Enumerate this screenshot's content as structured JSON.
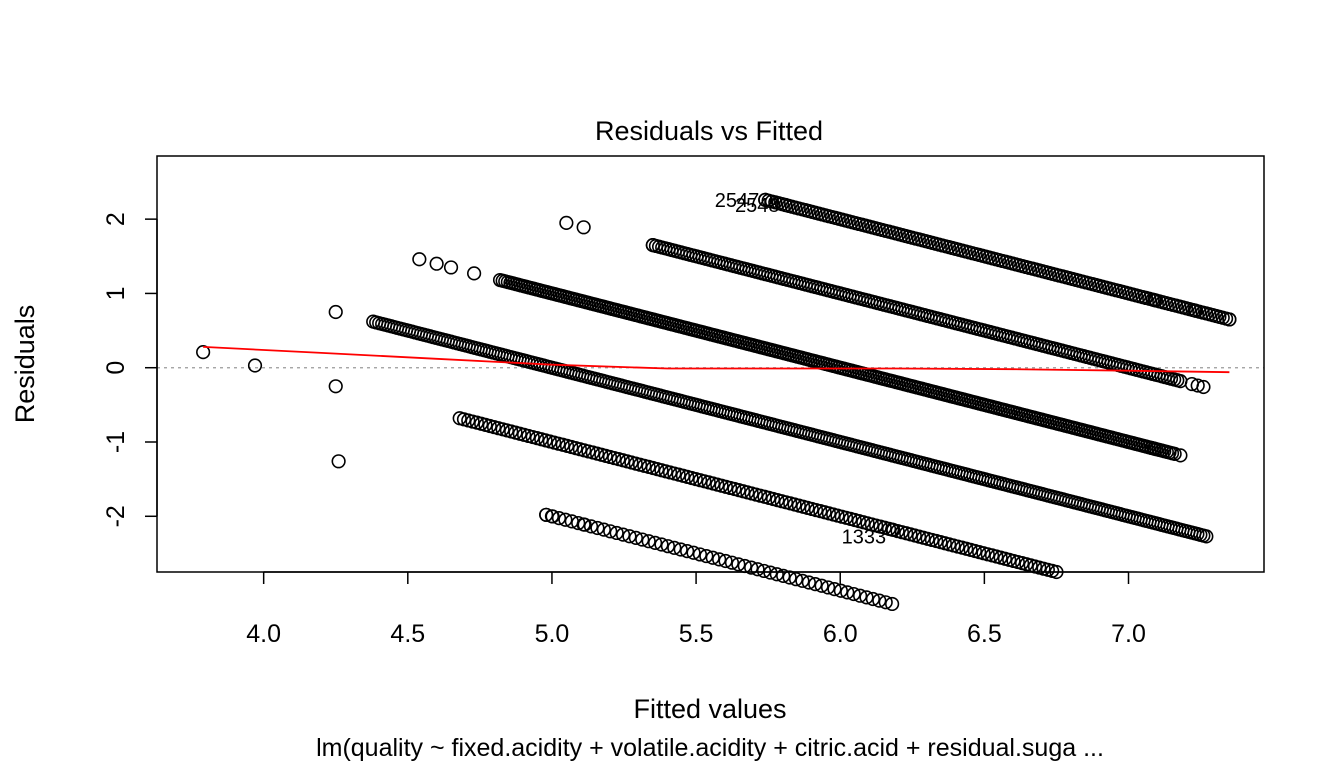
{
  "chart_data": {
    "type": "scatter",
    "title": "Residuals vs Fitted",
    "xlabel": "Fitted values",
    "ylabel": "Residuals",
    "subtitle": "lm(quality ~ fixed.acidity + volatile.acidity + citric.acid + residual.suga ...",
    "xlim": [
      3.63,
      7.47
    ],
    "ylim": [
      -2.75,
      2.85
    ],
    "xticks": [
      4.0,
      4.5,
      5.0,
      5.5,
      6.0,
      6.5,
      7.0
    ],
    "xtick_labels": [
      "4.0",
      "4.5",
      "5.0",
      "5.5",
      "6.0",
      "6.5",
      "7.0"
    ],
    "yticks": [
      -2,
      -1,
      0,
      1,
      2
    ],
    "ytick_labels": [
      "-2",
      "-1",
      "0",
      "1",
      "2"
    ],
    "grid": false,
    "reference_line": {
      "y": 0,
      "style": "dotted",
      "color": "#999999"
    },
    "bands": [
      {
        "residual_plus_fitted": 8,
        "x_range": [
          5.74,
          7.35
        ],
        "count": 140
      },
      {
        "residual_plus_fitted": 7,
        "x_range": [
          5.35,
          7.18
        ],
        "count": 170
      },
      {
        "residual_plus_fitted": 6,
        "x_range": [
          4.82,
          7.16
        ],
        "count": 260
      },
      {
        "residual_plus_fitted": 5,
        "x_range": [
          4.38,
          7.27
        ],
        "count": 280
      },
      {
        "residual_plus_fitted": 4,
        "x_range": [
          4.68,
          6.75
        ],
        "count": 140
      },
      {
        "residual_plus_fitted": 3,
        "x_range": [
          4.98,
          6.18
        ],
        "count": 55
      }
    ],
    "points": [
      {
        "x": 3.79,
        "y": 0.21
      },
      {
        "x": 3.97,
        "y": 0.03
      },
      {
        "x": 4.25,
        "y": 0.75
      },
      {
        "x": 4.25,
        "y": -0.25
      },
      {
        "x": 4.26,
        "y": -1.26
      },
      {
        "x": 4.54,
        "y": 1.46
      },
      {
        "x": 4.6,
        "y": 1.4
      },
      {
        "x": 4.65,
        "y": 1.35
      },
      {
        "x": 4.73,
        "y": 1.27
      },
      {
        "x": 5.05,
        "y": 1.95
      },
      {
        "x": 5.11,
        "y": 1.89
      },
      {
        "x": 5.35,
        "y": 1.65
      },
      {
        "x": 4.98,
        "y": -1.98
      },
      {
        "x": 5.0,
        "y": -2.0
      },
      {
        "x": 5.11,
        "y": -2.11
      },
      {
        "x": 6.18,
        "y": -2.18
      },
      {
        "x": 5.74,
        "y": 2.26
      },
      {
        "x": 5.81,
        "y": 2.19
      },
      {
        "x": 7.23,
        "y": 0.77
      },
      {
        "x": 7.35,
        "y": 0.65
      },
      {
        "x": 7.06,
        "y": 0.94
      },
      {
        "x": 7.09,
        "y": 0.91
      },
      {
        "x": 7.18,
        "y": -1.18
      },
      {
        "x": 7.08,
        "y": -1.08
      },
      {
        "x": 7.09,
        "y": -1.09
      },
      {
        "x": 7.22,
        "y": -0.22
      },
      {
        "x": 7.24,
        "y": -0.24
      },
      {
        "x": 7.26,
        "y": -0.26
      }
    ],
    "point_labels": [
      {
        "label": "2547",
        "x": 5.74,
        "y": 2.26
      },
      {
        "label": "2548",
        "x": 5.81,
        "y": 2.19
      },
      {
        "label": "1333",
        "x": 6.18,
        "y": -2.18
      }
    ],
    "smooth_line": {
      "color": "#ff0000",
      "x": [
        3.79,
        4.2,
        4.6,
        5.0,
        5.4,
        5.8,
        6.2,
        6.6,
        7.0,
        7.35
      ],
      "y": [
        0.28,
        0.2,
        0.12,
        0.04,
        -0.01,
        -0.01,
        -0.01,
        -0.02,
        -0.04,
        -0.06
      ]
    }
  }
}
